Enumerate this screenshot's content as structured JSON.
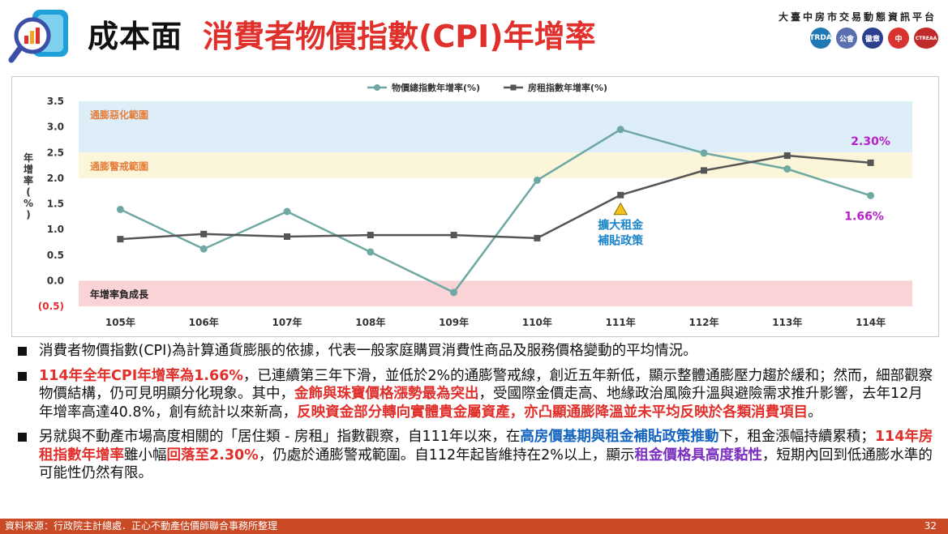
{
  "header": {
    "title_main": "成本面",
    "title_sub": "消費者物價指數(CPI)年增率",
    "platform_name": "大臺中房市交易動態資訊平台",
    "partner_logos": [
      "TRDA",
      "公會",
      "徽章",
      "中",
      "CTREAA"
    ]
  },
  "chart_data": {
    "type": "line",
    "categories": [
      "105年",
      "106年",
      "107年",
      "108年",
      "109年",
      "110年",
      "111年",
      "112年",
      "113年",
      "114年"
    ],
    "series": [
      {
        "name": "物價總指數年增率(%)",
        "color": "#6fa8a3",
        "values": [
          1.39,
          0.62,
          1.35,
          0.56,
          -0.23,
          1.96,
          2.95,
          2.49,
          2.18,
          1.66
        ]
      },
      {
        "name": "房租指數年增率(%)",
        "color": "#555555",
        "values": [
          0.81,
          0.91,
          0.86,
          0.89,
          0.89,
          0.83,
          1.67,
          2.15,
          2.44,
          2.3
        ]
      }
    ],
    "ylim": [
      -0.5,
      3.5
    ],
    "yticks": [
      "(0.5)",
      "0.0",
      "0.5",
      "1.0",
      "1.5",
      "2.0",
      "2.5",
      "3.0",
      "3.5"
    ],
    "ylabel_chars": [
      "年",
      "增",
      "率",
      "(",
      "%",
      ")"
    ],
    "bands": [
      {
        "label": "通膨惡化範圍",
        "from": 2.5,
        "to": 3.5,
        "color": "#ddeef8",
        "label_color": "#e57e3a"
      },
      {
        "label": "通膨警戒範圍",
        "from": 2.0,
        "to": 2.5,
        "color": "#fbf6d9",
        "label_color": "#e57e3a"
      },
      {
        "label": "年增率負成長",
        "from": -0.5,
        "to": 0.0,
        "color": "#f9d3d6",
        "label_color": "#222222"
      }
    ],
    "annotation": {
      "lines": [
        "擴大租金",
        "補貼政策"
      ],
      "category_index": 6,
      "color": "#1a85c8"
    },
    "end_labels": [
      {
        "text": "2.30%",
        "value": 2.3,
        "color": "#b620c8"
      },
      {
        "text": "1.66%",
        "value": 1.66,
        "color": "#b620c8"
      }
    ],
    "legend_position": "top-center",
    "grid": false
  },
  "bullets": [
    {
      "segments": [
        {
          "text": "消費者物價指數(CPI)為計算通貨膨脹的依據，代表一般家庭購買消費性商品及服務價格變動的平均情況。",
          "style": ""
        }
      ]
    },
    {
      "segments": [
        {
          "text": "114年全年CPI年增率為1.66%",
          "style": "red"
        },
        {
          "text": "，已連續第三年下滑，並低於2%的通膨警戒線，創近五年新低，顯示整體通膨壓力趨於緩和；然而，細部觀察物價結構，仍可見明顯分化現象。其中，",
          "style": ""
        },
        {
          "text": "金飾與珠寶價格漲勢最為突出",
          "style": "red"
        },
        {
          "text": "，受國際金價走高、地緣政治風險升溫與避險需求推升影響，去年12月年增率高達40.8%，創有統計以來新高，",
          "style": ""
        },
        {
          "text": "反映資金部分轉向實體貴金屬資產，亦凸顯通膨降溫並未平均反映於各類消費項目",
          "style": "red"
        },
        {
          "text": "。",
          "style": ""
        }
      ]
    },
    {
      "segments": [
        {
          "text": "另就與不動產市場高度相關的「居住類 - 房租」指數觀察，自111年以來，在",
          "style": ""
        },
        {
          "text": "高房價基期與租金補貼政策推動",
          "style": "blue"
        },
        {
          "text": "下，租金漲幅持續累積；",
          "style": ""
        },
        {
          "text": "114年房租指數年增率",
          "style": "red"
        },
        {
          "text": "雖小幅",
          "style": ""
        },
        {
          "text": "回落至2.30%",
          "style": "red"
        },
        {
          "text": "，仍處於通膨警戒範圍。自112年起皆維持在2%以上，顯示",
          "style": ""
        },
        {
          "text": "租金價格具高度黏性",
          "style": "purple"
        },
        {
          "text": "，短期內回到低通膨水準的可能性仍然有限。",
          "style": ""
        }
      ]
    }
  ],
  "footer": {
    "source": "資料來源：行政院主計總處．正心不動產估價師聯合事務所整理",
    "page": "32"
  }
}
